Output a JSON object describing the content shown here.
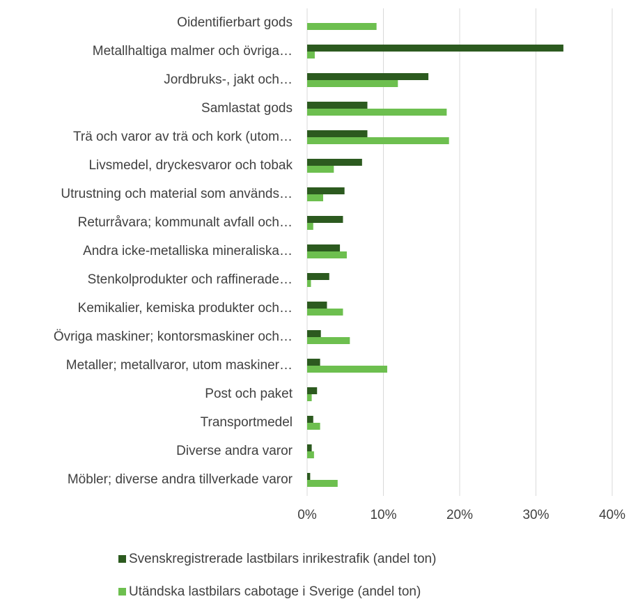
{
  "chart_data": {
    "type": "bar",
    "orientation": "horizontal",
    "categories": [
      "Oidentifierbart gods",
      "Metallhaltiga malmer och övriga…",
      "Jordbruks-, jakt och…",
      "Samlastat gods",
      "Trä och varor av trä och kork (utom…",
      "Livsmedel, dryckesvaror och tobak",
      "Utrustning och material som används…",
      "Returråvara; kommunalt avfall och…",
      "Andra icke-metalliska mineraliska…",
      "Stenkolprodukter och raffinerade…",
      "Kemikalier, kemiska produkter och…",
      "Övriga maskiner; kontorsmaskiner och…",
      "Metaller; metallvaror, utom maskiner…",
      "Post och paket",
      "Transportmedel",
      "Diverse andra varor",
      "Möbler; diverse andra tillverkade varor"
    ],
    "series": [
      {
        "name": "Svenskregistrerade lastbilars inrikestrafik (andel ton)",
        "color": "#2c5a1f",
        "values": [
          0,
          33.6,
          15.9,
          7.9,
          7.9,
          7.2,
          4.9,
          4.7,
          4.3,
          2.9,
          2.6,
          1.8,
          1.7,
          1.3,
          0.8,
          0.6,
          0.4
        ]
      },
      {
        "name": "Utändska lastbilars cabotage i Sverige (andel ton)",
        "color": "#6dbf4f",
        "values": [
          9.1,
          1.0,
          11.9,
          18.3,
          18.6,
          3.5,
          2.1,
          0.8,
          5.2,
          0.5,
          4.7,
          5.6,
          10.5,
          0.6,
          1.7,
          0.9,
          4.0
        ]
      }
    ],
    "xlim": [
      0,
      40
    ],
    "xticks": [
      {
        "value": 0,
        "label": "0%"
      },
      {
        "value": 10,
        "label": "10%"
      },
      {
        "value": 20,
        "label": "20%"
      },
      {
        "value": 30,
        "label": "30%"
      },
      {
        "value": 40,
        "label": "40%"
      }
    ],
    "grid": true,
    "legend": "bottom"
  }
}
